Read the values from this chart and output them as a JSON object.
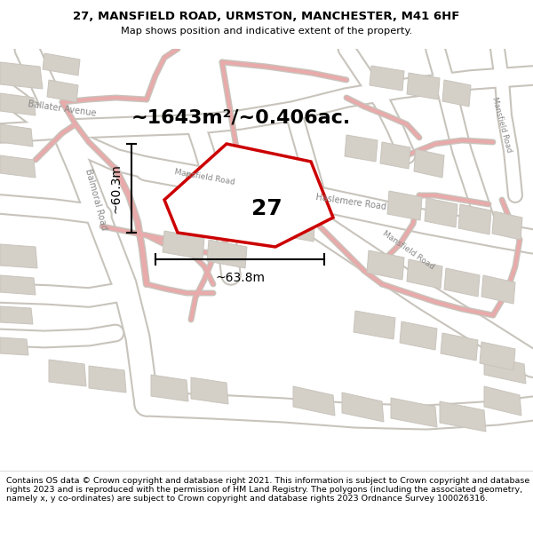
{
  "title_line1": "27, MANSFIELD ROAD, URMSTON, MANCHESTER, M41 6HF",
  "title_line2": "Map shows position and indicative extent of the property.",
  "area_text": "~1643m²/~0.406ac.",
  "label_number": "27",
  "dim_vertical": "~60.3m",
  "dim_horizontal": "~63.8m",
  "footer_text": "Contains OS data © Crown copyright and database right 2021. This information is subject to Crown copyright and database rights 2023 and is reproduced with the permission of HM Land Registry. The polygons (including the associated geometry, namely x, y co-ordinates) are subject to Crown copyright and database rights 2023 Ordnance Survey 100026316.",
  "bg_color": "#f0efeb",
  "road_color": "#ffffff",
  "road_outline": "#c8c4bc",
  "property_fill": "#ffffff",
  "property_edge": "#cc0000",
  "building_color": "#d4d0c8",
  "pink_road": "#e8aaaa",
  "title_bg": "#ffffff",
  "footer_bg": "#ffffff",
  "text_color": "#333333",
  "road_label_color": "#888888"
}
